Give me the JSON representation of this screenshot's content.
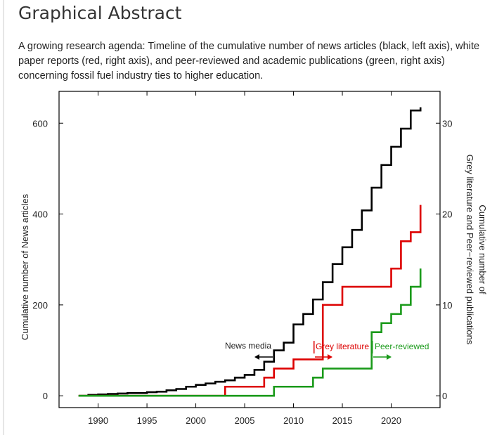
{
  "heading": "Graphical Abstract",
  "caption": "A growing research agenda: Timeline of the cumulative number of news articles (black, left axis), white paper reports (red, right axis), and peer-reviewed and academic publications (green, right axis) concerning fossil fuel industry ties to higher education.",
  "chart_data": {
    "type": "step",
    "ylabel": "Cumulative number of News articles",
    "y2label": [
      "Cumulative number of",
      "Grey literature and Peer−reviewed publications"
    ],
    "x": [
      1988,
      1989,
      1990,
      1991,
      1992,
      1993,
      1994,
      1995,
      1996,
      1997,
      1998,
      1999,
      2000,
      2001,
      2002,
      2003,
      2004,
      2005,
      2006,
      2007,
      2008,
      2009,
      2010,
      2011,
      2012,
      2013,
      2014,
      2015,
      2016,
      2017,
      2018,
      2019,
      2020,
      2021,
      2022,
      2023
    ],
    "series": [
      {
        "name": "News media",
        "color": "#000000",
        "axis": "y",
        "values": [
          0,
          2,
          3,
          4,
          5,
          6,
          6,
          8,
          9,
          12,
          15,
          20,
          24,
          27,
          31,
          34,
          40,
          46,
          57,
          75,
          100,
          117,
          157,
          180,
          212,
          250,
          290,
          327,
          365,
          408,
          458,
          508,
          548,
          588,
          628,
          635
        ]
      },
      {
        "name": "Grey literature",
        "color": "#dd0000",
        "axis": "y2",
        "values": [
          0,
          0,
          0,
          0,
          0,
          0,
          0,
          0,
          0,
          0,
          0,
          0,
          0,
          0,
          0,
          1,
          1,
          1,
          1,
          2,
          3,
          3,
          4,
          4,
          4,
          10,
          10,
          12,
          12,
          12,
          12,
          12,
          14,
          17,
          18,
          21
        ]
      },
      {
        "name": "Peer-reviewed",
        "color": "#1a9a1a",
        "axis": "y2",
        "values": [
          0,
          0,
          0,
          0,
          0,
          0,
          0,
          0,
          0,
          0,
          0,
          0,
          0,
          0,
          0,
          0,
          0,
          0,
          0,
          0,
          1,
          1,
          1,
          1,
          2,
          3,
          3,
          3,
          3,
          3,
          7,
          8,
          9,
          10,
          12,
          14
        ]
      }
    ],
    "annotations": [
      {
        "text": "News media"
      },
      {
        "text": "Grey literature"
      },
      {
        "text": "Peer-reviewed"
      }
    ],
    "xlim": [
      1986,
      2025
    ],
    "xticks": [
      1990,
      1995,
      2000,
      2005,
      2010,
      2015,
      2020
    ],
    "ylim": [
      -26,
      670
    ],
    "yticks": [
      0,
      200,
      400,
      600
    ],
    "y2lim": [
      -1.3,
      33.5
    ],
    "y2ticks": [
      0,
      10,
      20,
      30
    ]
  }
}
